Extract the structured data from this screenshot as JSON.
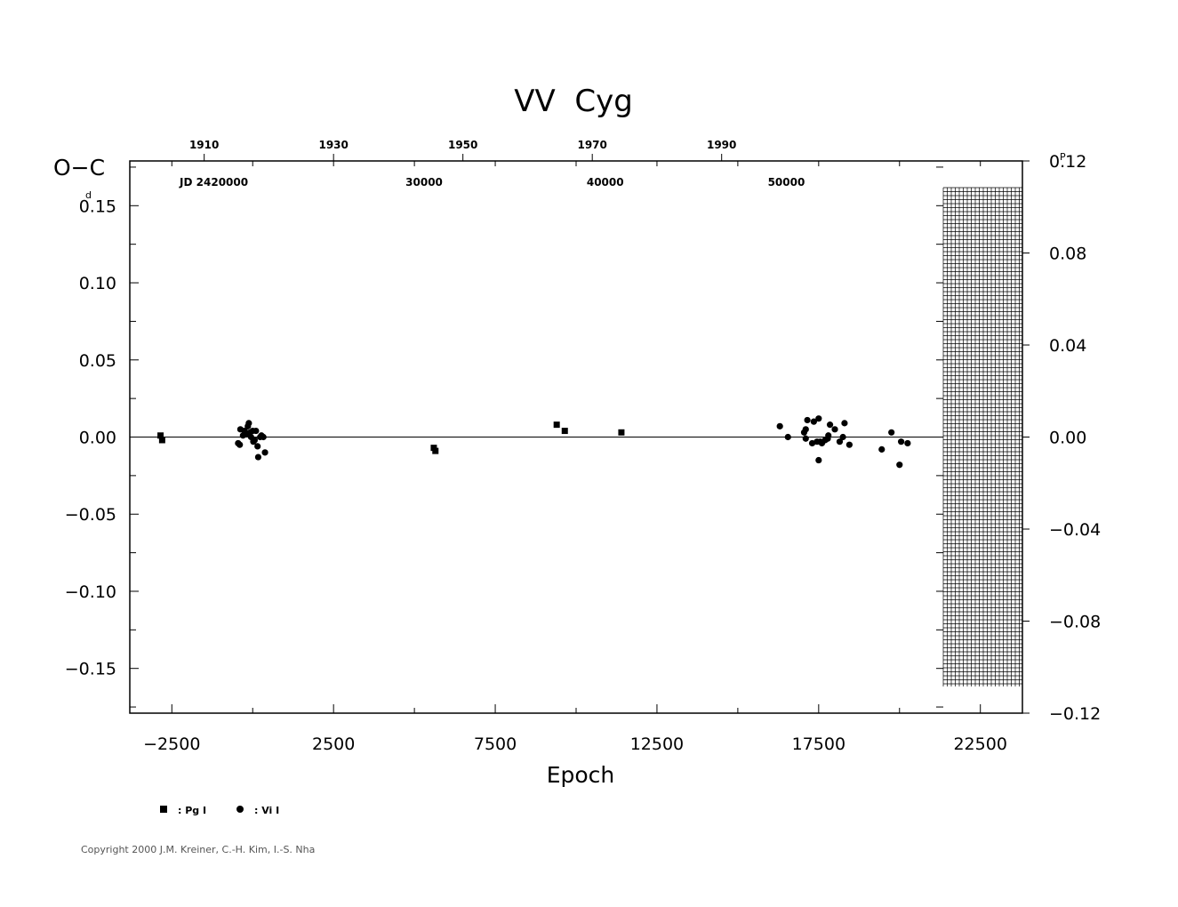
{
  "chart_data": {
    "type": "scatter",
    "title": "VV  Cyg",
    "xlabel": "Epoch",
    "ylabel": "O−C",
    "left_unit": "d",
    "right_unit": "P",
    "xlim": [
      -3800,
      23800
    ],
    "ylim": [
      -0.179,
      0.179
    ],
    "ylim_right": [
      -0.12,
      0.12
    ],
    "x_ticks": [
      "−2500",
      "2500",
      "7500",
      "12500",
      "17500",
      "22500"
    ],
    "x_tick_values": [
      -2500,
      2500,
      7500,
      12500,
      17500,
      22500
    ],
    "y_ticks": [
      "0.15",
      "0.10",
      "0.05",
      "0.00",
      "−0.05",
      "−0.10",
      "−0.15"
    ],
    "y_tick_values": [
      0.15,
      0.1,
      0.05,
      0.0,
      -0.05,
      -0.1,
      -0.15
    ],
    "y_right_ticks": [
      "0.12",
      "0.08",
      "0.04",
      "0.00",
      "−0.04",
      "−0.08",
      "−0.12"
    ],
    "y_right_tick_values": [
      0.12,
      0.08,
      0.04,
      0.0,
      -0.04,
      -0.08,
      -0.12
    ],
    "top_year_labels": [
      "1910",
      "1930",
      "1950",
      "1970",
      "1990"
    ],
    "top_year_epochs": [
      -1500,
      2500,
      6500,
      10500,
      14500
    ],
    "top_jd_labels": [
      "JD  2420000",
      "30000",
      "40000",
      "50000"
    ],
    "top_jd_epochs": [
      -1200,
      5300,
      10900,
      16500
    ],
    "grid": false,
    "zero_line": true,
    "legend_placement": "bottom-left",
    "series": [
      {
        "name": ": Pg  I",
        "marker": "square",
        "points": [
          [
            -2850,
            0.001
          ],
          [
            -2800,
            -0.002
          ],
          [
            5600,
            -0.007
          ],
          [
            5650,
            -0.009
          ],
          [
            9400,
            0.008
          ],
          [
            9650,
            0.004
          ],
          [
            11400,
            0.003
          ]
        ]
      },
      {
        "name": ": Vi  I",
        "marker": "circle",
        "points": [
          [
            -450,
            -0.004
          ],
          [
            -400,
            -0.005
          ],
          [
            -380,
            0.005
          ],
          [
            -300,
            0.001
          ],
          [
            -250,
            0.004
          ],
          [
            -200,
            0.002
          ],
          [
            -150,
            0.007
          ],
          [
            -120,
            0.009
          ],
          [
            -80,
            0.003
          ],
          [
            -50,
            0.0
          ],
          [
            0,
            0.004
          ],
          [
            20,
            -0.003
          ],
          [
            60,
            -0.002
          ],
          [
            100,
            0.004
          ],
          [
            150,
            -0.006
          ],
          [
            170,
            -0.013
          ],
          [
            230,
            0.0
          ],
          [
            270,
            0.001
          ],
          [
            330,
            0.0
          ],
          [
            380,
            -0.01
          ],
          [
            16300,
            0.007
          ],
          [
            16550,
            0.0
          ],
          [
            17050,
            0.003
          ],
          [
            17100,
            0.005
          ],
          [
            17100,
            -0.001
          ],
          [
            17150,
            0.011
          ],
          [
            17300,
            -0.004
          ],
          [
            17350,
            0.01
          ],
          [
            17450,
            -0.003
          ],
          [
            17500,
            0.012
          ],
          [
            17500,
            -0.015
          ],
          [
            17550,
            -0.003
          ],
          [
            17600,
            -0.004
          ],
          [
            17700,
            -0.002
          ],
          [
            17780,
            -0.001
          ],
          [
            17800,
            0.001
          ],
          [
            17850,
            0.008
          ],
          [
            18000,
            0.005
          ],
          [
            18150,
            -0.003
          ],
          [
            18250,
            0.0
          ],
          [
            18300,
            0.009
          ],
          [
            18450,
            -0.005
          ],
          [
            19450,
            -0.008
          ],
          [
            19750,
            0.003
          ],
          [
            20000,
            -0.018
          ],
          [
            20050,
            -0.003
          ],
          [
            20250,
            -0.004
          ]
        ]
      }
    ]
  },
  "copyright": "Copyright 2000 J.M. Kreiner, C.-H. Kim, I.-S. Nha"
}
